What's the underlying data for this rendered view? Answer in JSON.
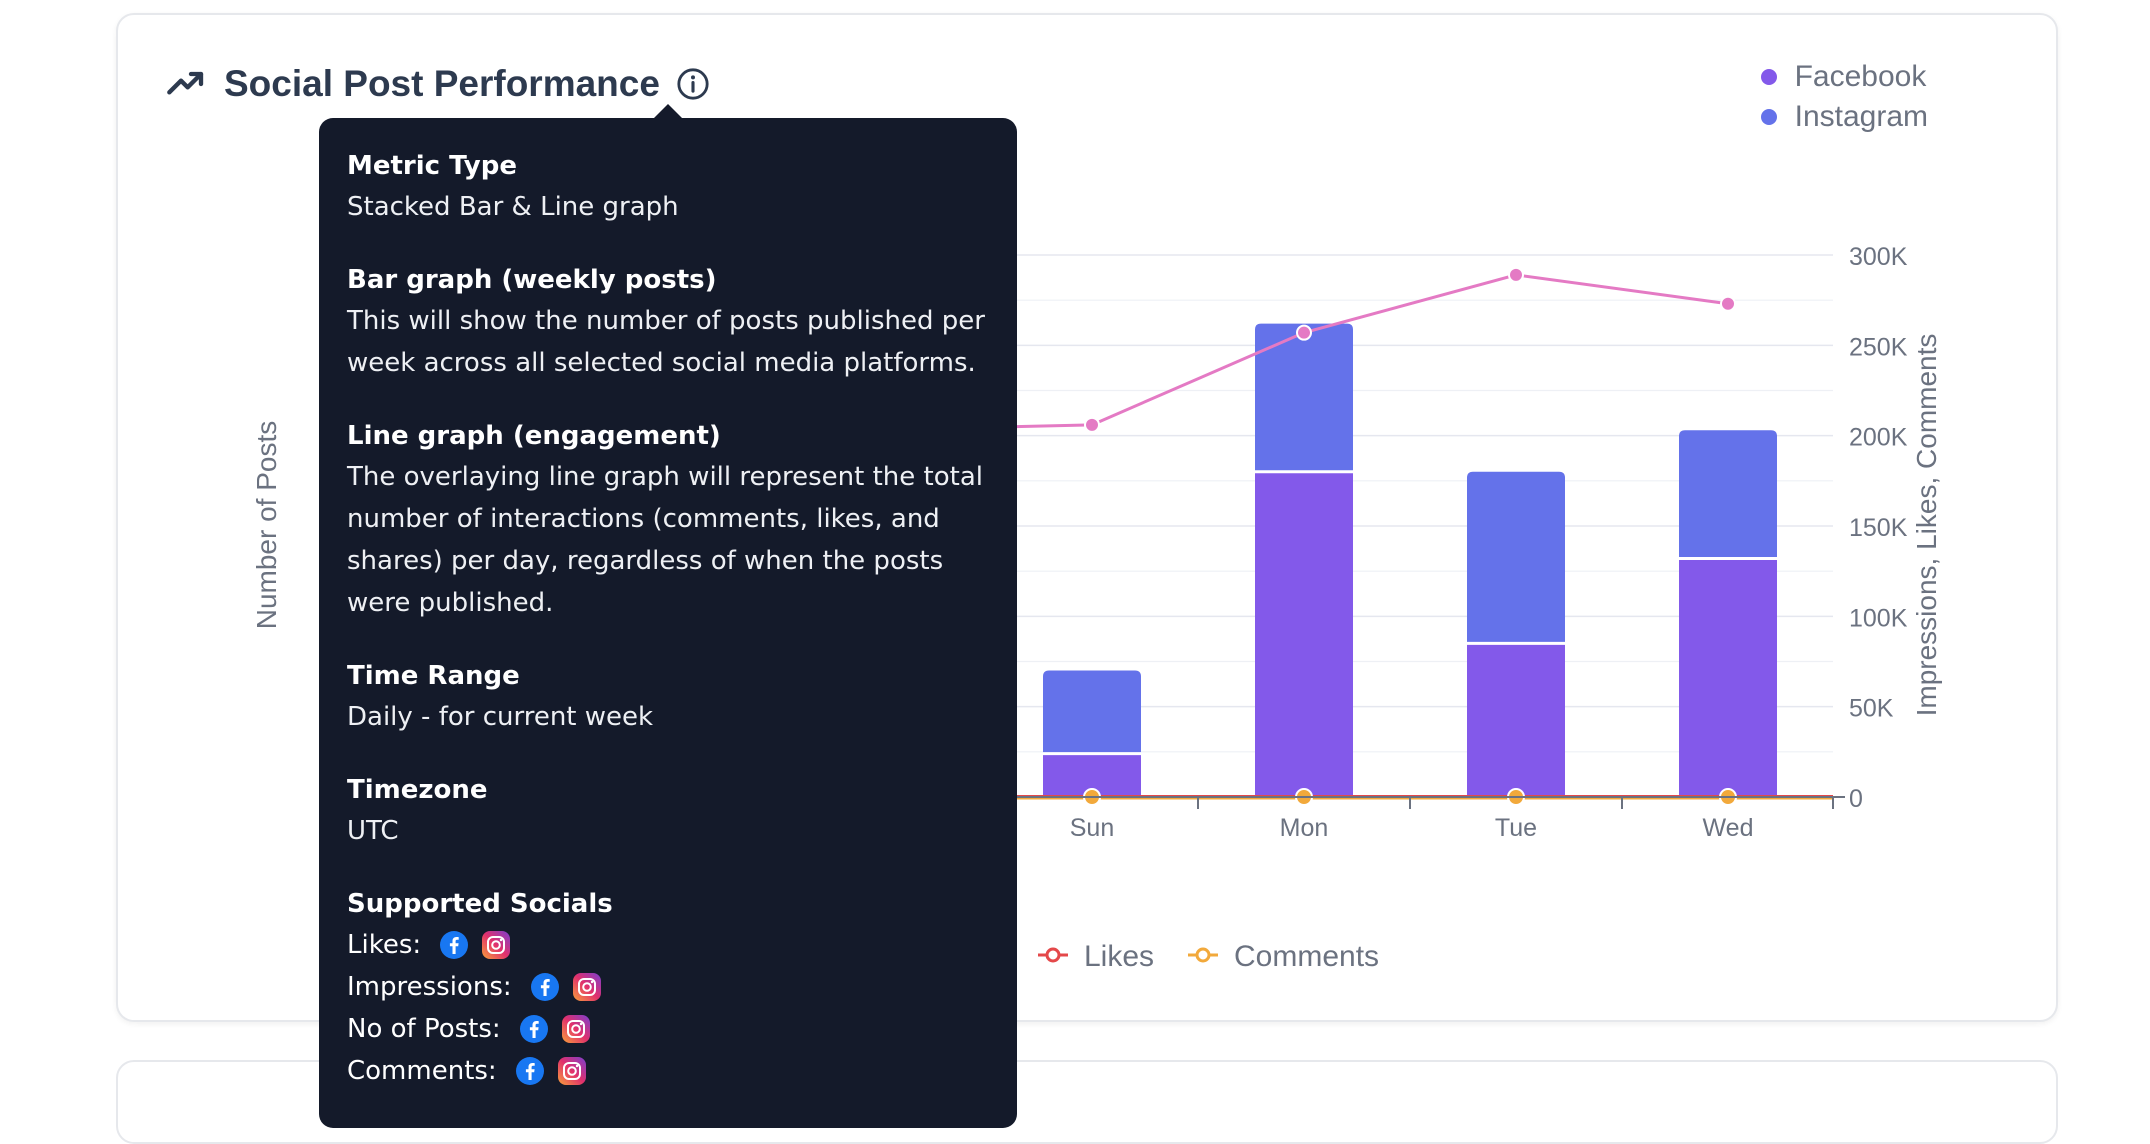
{
  "header": {
    "title": "Social Post Performance",
    "title_icon": "trending-up-icon",
    "info_icon": "info-icon"
  },
  "legend_top": [
    {
      "label": "Facebook",
      "color": "#8359ea"
    },
    {
      "label": "Instagram",
      "color": "#6472ea"
    }
  ],
  "legend_bottom": [
    {
      "label": "Likes",
      "color": "#e4484a"
    },
    {
      "label": "Comments",
      "color": "#f2a93b"
    }
  ],
  "chart_data": {
    "type": "bar",
    "title": "Social Post Performance",
    "categories": [
      "Sun",
      "Mon",
      "Tue",
      "Wed"
    ],
    "ylabel": "Number of Posts",
    "y2label": "Impressions, Likes, Comments",
    "y2_tick_labels": [
      "0",
      "50K",
      "100K",
      "150K",
      "200K",
      "250K",
      "300K"
    ],
    "y2lim": [
      0,
      300000
    ],
    "series": [
      {
        "name": "Facebook",
        "kind": "bar",
        "stack": "posts",
        "values": [
          24000,
          180000,
          85000,
          132000
        ]
      },
      {
        "name": "Instagram",
        "kind": "bar",
        "stack": "posts",
        "values": [
          46000,
          82000,
          95000,
          71000
        ]
      },
      {
        "name": "Impressions",
        "kind": "line",
        "axis": "right",
        "values": [
          206000,
          257000,
          289000,
          273000
        ]
      },
      {
        "name": "Likes",
        "kind": "line",
        "axis": "right",
        "values": [
          0,
          0,
          0,
          0
        ]
      },
      {
        "name": "Comments",
        "kind": "line",
        "axis": "right",
        "values": [
          0,
          0,
          0,
          0
        ]
      }
    ]
  },
  "tooltip": {
    "sections": [
      {
        "heading": "Metric Type",
        "body": "Stacked Bar & Line graph"
      },
      {
        "heading": "Bar graph (weekly posts)",
        "body": "This will show the number of posts published per week across all selected social media platforms."
      },
      {
        "heading": "Line graph (engagement)",
        "body": "The overlaying line graph will represent the total number of interactions (comments, likes, and shares) per day, regardless of when the posts were published."
      },
      {
        "heading": "Time Range",
        "body": "Daily - for current week"
      },
      {
        "heading": "Timezone",
        "body": "UTC"
      }
    ],
    "supported_heading": "Supported Socials",
    "socials": [
      {
        "label": "Likes:"
      },
      {
        "label": "Impressions:"
      },
      {
        "label": "No of Posts:"
      },
      {
        "label": "Comments:"
      }
    ]
  },
  "colors": {
    "facebook": "#8359ea",
    "instagram": "#6472ea",
    "impressions_line": "#e47ac4",
    "likes": "#e4484a",
    "comments": "#f2a93b",
    "tooltip_bg": "#141a2a"
  }
}
